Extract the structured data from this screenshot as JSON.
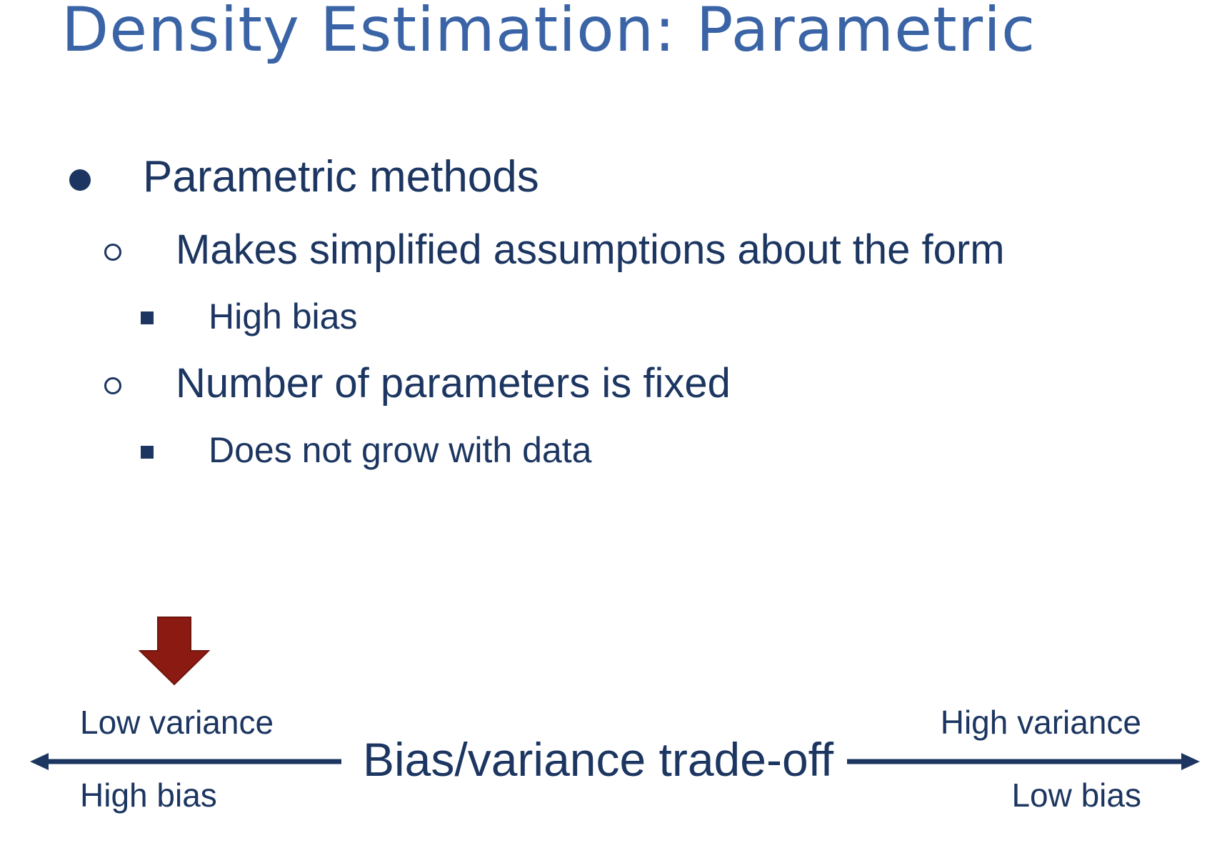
{
  "slide": {
    "title": "Density Estimation: Parametric",
    "bullets": [
      {
        "level": 1,
        "text": "Parametric methods"
      },
      {
        "level": 2,
        "text": "Makes simplified assumptions about the form"
      },
      {
        "level": 3,
        "text": "High bias"
      },
      {
        "level": 2,
        "text": "Number of parameters is fixed"
      },
      {
        "level": 3,
        "text": "Does not grow with data"
      }
    ]
  },
  "tradeoff": {
    "center_label": "Bias/variance trade-off",
    "left_top": "Low variance",
    "left_bottom": "High bias",
    "right_top": "High variance",
    "right_bottom": "Low bias",
    "line_color": "#1c3661",
    "pointer_color": "#8b1a12"
  }
}
